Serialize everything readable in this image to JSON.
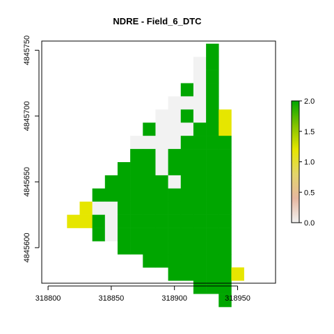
{
  "title": "NDRE - Field_6_DTC",
  "chart_data": {
    "type": "heatmap",
    "title": "NDRE - Field_6_DTC",
    "xlabel": "",
    "ylabel": "",
    "x_ticks": [
      318800,
      318850,
      318900,
      318950
    ],
    "x_tick_labels": [
      "318800",
      "318850",
      "318900",
      "318950"
    ],
    "y_ticks": [
      4845600,
      4845650,
      4845700,
      4845750
    ],
    "y_tick_labels": [
      "4845600",
      "4845650",
      "4845700",
      "4845750"
    ],
    "xlim": [
      318795,
      318980
    ],
    "ylim": [
      4845573,
      4845757
    ],
    "cell_size": 10,
    "legend": {
      "position": "right",
      "min": 0.0,
      "max": 2.0,
      "ticks": [
        0.0,
        0.5,
        1.0,
        1.5,
        2.0
      ],
      "tick_labels": [
        "0.0",
        "0.5",
        "1.0",
        "1.5",
        "2.0"
      ],
      "gradient_colors": [
        "#f2f2f2",
        "#e7b7a0",
        "#e3d56a",
        "#e6e600",
        "#82c200",
        "#00a600"
      ]
    },
    "colors": {
      "green": "#00a600",
      "yellow": "#e6e600",
      "light_gray": "#f2f2f2"
    },
    "cells": [
      {
        "x": 318930,
        "y": 4845750,
        "v": "green"
      },
      {
        "x": 318920,
        "y": 4845740,
        "v": "light_gray"
      },
      {
        "x": 318930,
        "y": 4845740,
        "v": "green"
      },
      {
        "x": 318920,
        "y": 4845730,
        "v": "light_gray"
      },
      {
        "x": 318930,
        "y": 4845730,
        "v": "green"
      },
      {
        "x": 318910,
        "y": 4845720,
        "v": "green"
      },
      {
        "x": 318920,
        "y": 4845720,
        "v": "light_gray"
      },
      {
        "x": 318930,
        "y": 4845720,
        "v": "green"
      },
      {
        "x": 318900,
        "y": 4845710,
        "v": "light_gray"
      },
      {
        "x": 318910,
        "y": 4845710,
        "v": "light_gray"
      },
      {
        "x": 318920,
        "y": 4845710,
        "v": "light_gray"
      },
      {
        "x": 318930,
        "y": 4845710,
        "v": "green"
      },
      {
        "x": 318890,
        "y": 4845700,
        "v": "light_gray"
      },
      {
        "x": 318900,
        "y": 4845700,
        "v": "light_gray"
      },
      {
        "x": 318910,
        "y": 4845700,
        "v": "green"
      },
      {
        "x": 318920,
        "y": 4845700,
        "v": "light_gray"
      },
      {
        "x": 318930,
        "y": 4845700,
        "v": "green"
      },
      {
        "x": 318940,
        "y": 4845700,
        "v": "yellow"
      },
      {
        "x": 318880,
        "y": 4845690,
        "v": "green"
      },
      {
        "x": 318890,
        "y": 4845690,
        "v": "light_gray"
      },
      {
        "x": 318900,
        "y": 4845690,
        "v": "light_gray"
      },
      {
        "x": 318910,
        "y": 4845690,
        "v": "light_gray"
      },
      {
        "x": 318920,
        "y": 4845690,
        "v": "green"
      },
      {
        "x": 318930,
        "y": 4845690,
        "v": "green"
      },
      {
        "x": 318940,
        "y": 4845690,
        "v": "yellow"
      },
      {
        "x": 318870,
        "y": 4845680,
        "v": "light_gray"
      },
      {
        "x": 318880,
        "y": 4845680,
        "v": "light_gray"
      },
      {
        "x": 318890,
        "y": 4845680,
        "v": "light_gray"
      },
      {
        "x": 318900,
        "y": 4845680,
        "v": "light_gray"
      },
      {
        "x": 318910,
        "y": 4845680,
        "v": "green"
      },
      {
        "x": 318920,
        "y": 4845680,
        "v": "green"
      },
      {
        "x": 318930,
        "y": 4845680,
        "v": "green"
      },
      {
        "x": 318940,
        "y": 4845680,
        "v": "green"
      },
      {
        "x": 318870,
        "y": 4845670,
        "v": "green"
      },
      {
        "x": 318880,
        "y": 4845670,
        "v": "green"
      },
      {
        "x": 318890,
        "y": 4845670,
        "v": "light_gray"
      },
      {
        "x": 318900,
        "y": 4845670,
        "v": "green"
      },
      {
        "x": 318910,
        "y": 4845670,
        "v": "green"
      },
      {
        "x": 318920,
        "y": 4845670,
        "v": "green"
      },
      {
        "x": 318930,
        "y": 4845670,
        "v": "green"
      },
      {
        "x": 318940,
        "y": 4845670,
        "v": "green"
      },
      {
        "x": 318860,
        "y": 4845660,
        "v": "green"
      },
      {
        "x": 318870,
        "y": 4845660,
        "v": "green"
      },
      {
        "x": 318880,
        "y": 4845660,
        "v": "green"
      },
      {
        "x": 318890,
        "y": 4845660,
        "v": "light_gray"
      },
      {
        "x": 318900,
        "y": 4845660,
        "v": "green"
      },
      {
        "x": 318910,
        "y": 4845660,
        "v": "green"
      },
      {
        "x": 318920,
        "y": 4845660,
        "v": "green"
      },
      {
        "x": 318930,
        "y": 4845660,
        "v": "green"
      },
      {
        "x": 318940,
        "y": 4845660,
        "v": "green"
      },
      {
        "x": 318850,
        "y": 4845650,
        "v": "green"
      },
      {
        "x": 318860,
        "y": 4845650,
        "v": "green"
      },
      {
        "x": 318870,
        "y": 4845650,
        "v": "green"
      },
      {
        "x": 318880,
        "y": 4845650,
        "v": "green"
      },
      {
        "x": 318890,
        "y": 4845650,
        "v": "green"
      },
      {
        "x": 318900,
        "y": 4845650,
        "v": "light_gray"
      },
      {
        "x": 318910,
        "y": 4845650,
        "v": "green"
      },
      {
        "x": 318920,
        "y": 4845650,
        "v": "green"
      },
      {
        "x": 318930,
        "y": 4845650,
        "v": "green"
      },
      {
        "x": 318940,
        "y": 4845650,
        "v": "green"
      },
      {
        "x": 318840,
        "y": 4845640,
        "v": "green"
      },
      {
        "x": 318850,
        "y": 4845640,
        "v": "green"
      },
      {
        "x": 318860,
        "y": 4845640,
        "v": "green"
      },
      {
        "x": 318870,
        "y": 4845640,
        "v": "green"
      },
      {
        "x": 318880,
        "y": 4845640,
        "v": "green"
      },
      {
        "x": 318890,
        "y": 4845640,
        "v": "green"
      },
      {
        "x": 318900,
        "y": 4845640,
        "v": "green"
      },
      {
        "x": 318910,
        "y": 4845640,
        "v": "green"
      },
      {
        "x": 318920,
        "y": 4845640,
        "v": "green"
      },
      {
        "x": 318930,
        "y": 4845640,
        "v": "green"
      },
      {
        "x": 318940,
        "y": 4845640,
        "v": "green"
      },
      {
        "x": 318830,
        "y": 4845630,
        "v": "yellow"
      },
      {
        "x": 318840,
        "y": 4845630,
        "v": "light_gray"
      },
      {
        "x": 318850,
        "y": 4845630,
        "v": "light_gray"
      },
      {
        "x": 318860,
        "y": 4845630,
        "v": "green"
      },
      {
        "x": 318870,
        "y": 4845630,
        "v": "green"
      },
      {
        "x": 318880,
        "y": 4845630,
        "v": "green"
      },
      {
        "x": 318890,
        "y": 4845630,
        "v": "green"
      },
      {
        "x": 318900,
        "y": 4845630,
        "v": "green"
      },
      {
        "x": 318910,
        "y": 4845630,
        "v": "green"
      },
      {
        "x": 318920,
        "y": 4845630,
        "v": "green"
      },
      {
        "x": 318930,
        "y": 4845630,
        "v": "green"
      },
      {
        "x": 318940,
        "y": 4845630,
        "v": "green"
      },
      {
        "x": 318820,
        "y": 4845620,
        "v": "yellow"
      },
      {
        "x": 318830,
        "y": 4845620,
        "v": "yellow"
      },
      {
        "x": 318840,
        "y": 4845620,
        "v": "green"
      },
      {
        "x": 318850,
        "y": 4845620,
        "v": "light_gray"
      },
      {
        "x": 318860,
        "y": 4845620,
        "v": "green"
      },
      {
        "x": 318870,
        "y": 4845620,
        "v": "green"
      },
      {
        "x": 318880,
        "y": 4845620,
        "v": "green"
      },
      {
        "x": 318890,
        "y": 4845620,
        "v": "green"
      },
      {
        "x": 318900,
        "y": 4845620,
        "v": "green"
      },
      {
        "x": 318910,
        "y": 4845620,
        "v": "green"
      },
      {
        "x": 318920,
        "y": 4845620,
        "v": "green"
      },
      {
        "x": 318930,
        "y": 4845620,
        "v": "green"
      },
      {
        "x": 318940,
        "y": 4845620,
        "v": "green"
      },
      {
        "x": 318840,
        "y": 4845610,
        "v": "green"
      },
      {
        "x": 318850,
        "y": 4845610,
        "v": "light_gray"
      },
      {
        "x": 318860,
        "y": 4845610,
        "v": "green"
      },
      {
        "x": 318870,
        "y": 4845610,
        "v": "green"
      },
      {
        "x": 318880,
        "y": 4845610,
        "v": "green"
      },
      {
        "x": 318890,
        "y": 4845610,
        "v": "green"
      },
      {
        "x": 318900,
        "y": 4845610,
        "v": "green"
      },
      {
        "x": 318910,
        "y": 4845610,
        "v": "green"
      },
      {
        "x": 318920,
        "y": 4845610,
        "v": "green"
      },
      {
        "x": 318930,
        "y": 4845610,
        "v": "green"
      },
      {
        "x": 318940,
        "y": 4845610,
        "v": "green"
      },
      {
        "x": 318860,
        "y": 4845600,
        "v": "green"
      },
      {
        "x": 318870,
        "y": 4845600,
        "v": "green"
      },
      {
        "x": 318880,
        "y": 4845600,
        "v": "green"
      },
      {
        "x": 318890,
        "y": 4845600,
        "v": "green"
      },
      {
        "x": 318900,
        "y": 4845600,
        "v": "green"
      },
      {
        "x": 318910,
        "y": 4845600,
        "v": "green"
      },
      {
        "x": 318920,
        "y": 4845600,
        "v": "green"
      },
      {
        "x": 318930,
        "y": 4845600,
        "v": "green"
      },
      {
        "x": 318940,
        "y": 4845600,
        "v": "green"
      },
      {
        "x": 318880,
        "y": 4845590,
        "v": "green"
      },
      {
        "x": 318890,
        "y": 4845590,
        "v": "green"
      },
      {
        "x": 318900,
        "y": 4845590,
        "v": "green"
      },
      {
        "x": 318910,
        "y": 4845590,
        "v": "green"
      },
      {
        "x": 318920,
        "y": 4845590,
        "v": "green"
      },
      {
        "x": 318930,
        "y": 4845590,
        "v": "green"
      },
      {
        "x": 318940,
        "y": 4845590,
        "v": "green"
      },
      {
        "x": 318900,
        "y": 4845580,
        "v": "green"
      },
      {
        "x": 318910,
        "y": 4845580,
        "v": "green"
      },
      {
        "x": 318920,
        "y": 4845580,
        "v": "green"
      },
      {
        "x": 318930,
        "y": 4845580,
        "v": "green"
      },
      {
        "x": 318940,
        "y": 4845580,
        "v": "green"
      },
      {
        "x": 318950,
        "y": 4845580,
        "v": "yellow"
      },
      {
        "x": 318920,
        "y": 4845570,
        "v": "green"
      },
      {
        "x": 318930,
        "y": 4845570,
        "v": "green"
      },
      {
        "x": 318940,
        "y": 4845570,
        "v": "green"
      },
      {
        "x": 318940,
        "y": 4845560,
        "v": "green"
      }
    ]
  }
}
